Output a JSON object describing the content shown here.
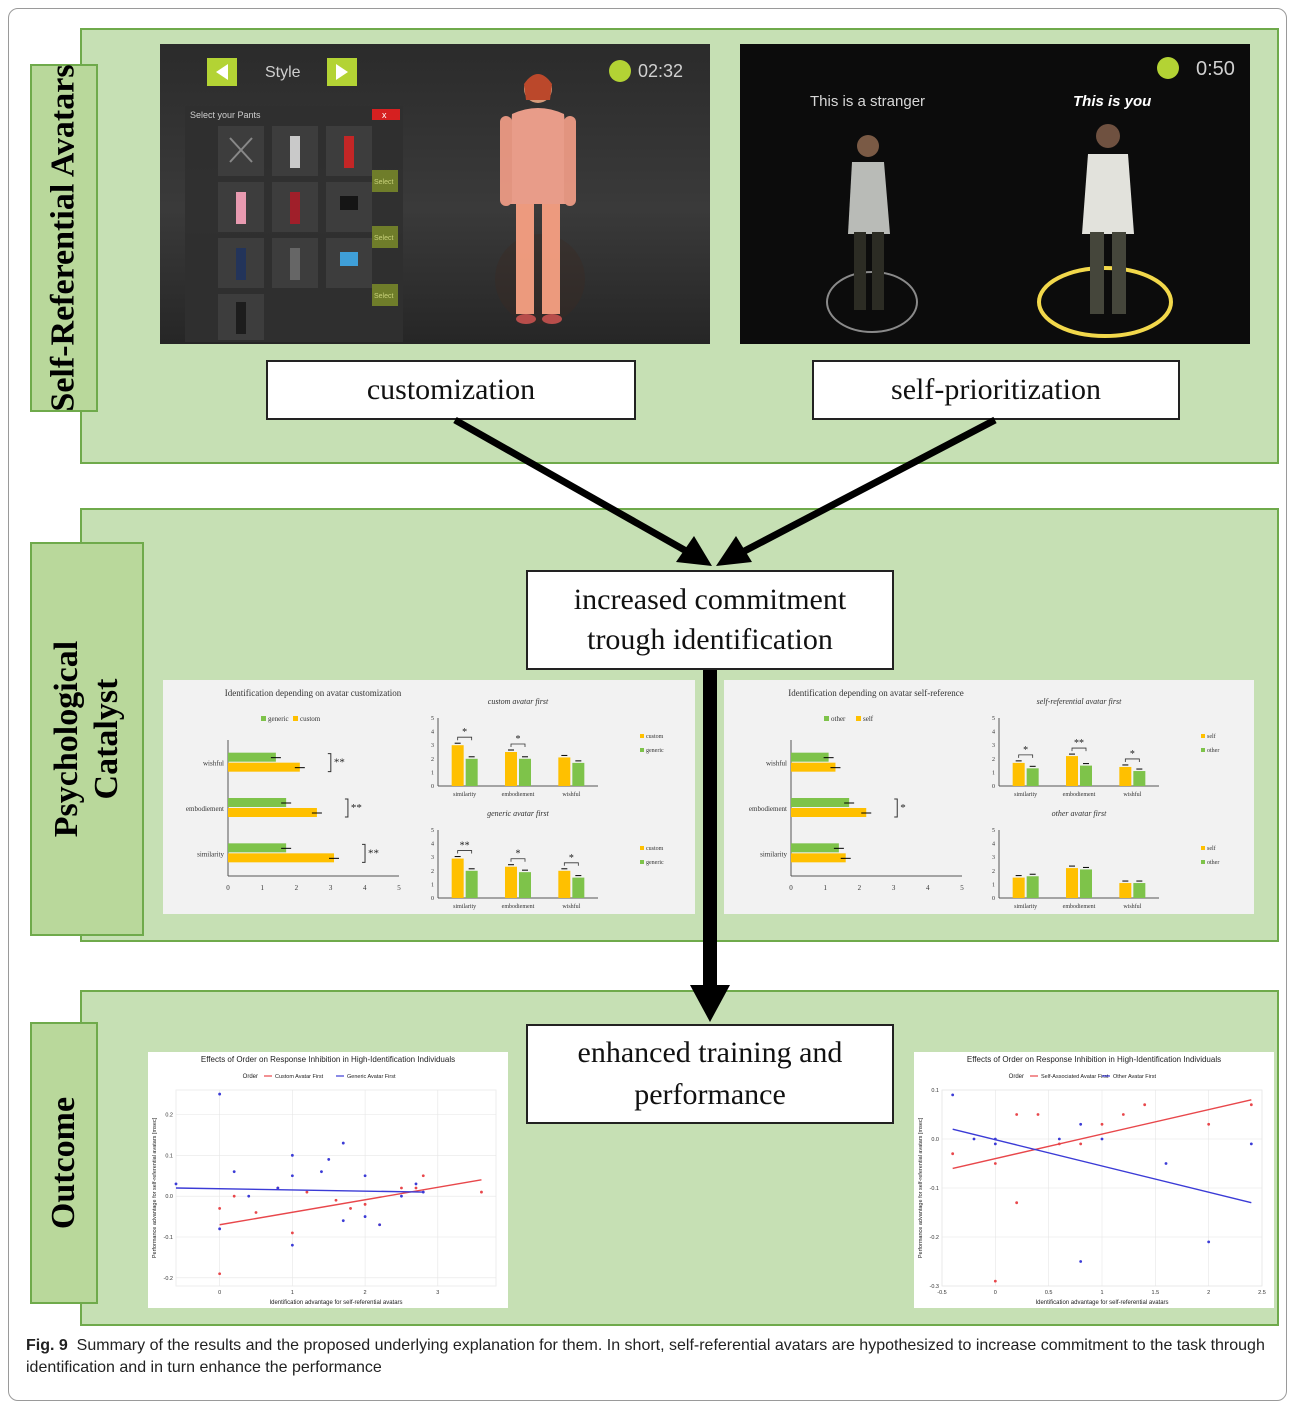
{
  "sections": {
    "top_label": "Self-Referential Avatars",
    "middle_label_line1": "Psychological",
    "middle_label_line2": "Catalyst",
    "bottom_label": "Outcome"
  },
  "boxes": {
    "customization": "customization",
    "self_prioritization": "self-prioritization",
    "commitment_line1": "increased commitment",
    "commitment_line2": "trough identification",
    "outcome_line1": "enhanced training and",
    "outcome_line2": "performance"
  },
  "screenshot_left": {
    "style_label": "Style",
    "timer": "02:32",
    "menu_title": "Select your Pants",
    "menu_close": "x",
    "select_label": "Select"
  },
  "screenshot_right": {
    "timer": "0:50",
    "stranger_label": "This is a stranger",
    "you_label": "This is you"
  },
  "chart_data": [
    {
      "type": "bar",
      "orientation": "horizontal",
      "title": "Identification depending on avatar customization",
      "legend": [
        "generic",
        "custom"
      ],
      "categories": [
        "wishful",
        "embodiement",
        "similarity"
      ],
      "series": [
        {
          "name": "generic",
          "values": [
            1.4,
            1.7,
            1.7
          ]
        },
        {
          "name": "custom",
          "values": [
            2.1,
            2.6,
            3.1
          ]
        }
      ],
      "xlim": [
        0,
        5
      ],
      "xticks": [
        "0",
        "1",
        "2",
        "3",
        "4",
        "5"
      ],
      "significance": [
        "**",
        "**",
        "**"
      ],
      "colors": {
        "generic": "#7ec34a",
        "custom": "#ffc000"
      }
    },
    {
      "type": "bar",
      "title": "custom avatar first",
      "categories": [
        "similarity",
        "embodiement",
        "wishful"
      ],
      "series": [
        {
          "name": "custom",
          "values": [
            3.0,
            2.5,
            2.1
          ]
        },
        {
          "name": "generic",
          "values": [
            2.0,
            2.0,
            1.7
          ]
        }
      ],
      "ylim": [
        0,
        5
      ],
      "significance": [
        "*",
        "*",
        ""
      ]
    },
    {
      "type": "bar",
      "title": "generic avatar first",
      "categories": [
        "similarity",
        "embodiement",
        "wishful"
      ],
      "series": [
        {
          "name": "custom",
          "values": [
            2.9,
            2.3,
            2.0
          ]
        },
        {
          "name": "generic",
          "values": [
            2.0,
            1.9,
            1.5
          ]
        }
      ],
      "ylim": [
        0,
        5
      ],
      "significance": [
        "**",
        "*",
        "*"
      ]
    },
    {
      "type": "bar",
      "orientation": "horizontal",
      "title": "Identification depending on avatar self-reference",
      "legend": [
        "other",
        "self"
      ],
      "categories": [
        "wishful",
        "embodiement",
        "similarity"
      ],
      "series": [
        {
          "name": "other",
          "values": [
            1.1,
            1.7,
            1.4
          ]
        },
        {
          "name": "self",
          "values": [
            1.3,
            2.2,
            1.6
          ]
        }
      ],
      "xlim": [
        0,
        5
      ],
      "xticks": [
        "0",
        "1",
        "2",
        "3",
        "4",
        "5"
      ],
      "significance": [
        "",
        "*",
        ""
      ]
    },
    {
      "type": "bar",
      "title": "self-referential avatar first",
      "categories": [
        "similarity",
        "embodiement",
        "wishful"
      ],
      "series": [
        {
          "name": "self",
          "values": [
            1.7,
            2.2,
            1.4
          ]
        },
        {
          "name": "other",
          "values": [
            1.3,
            1.5,
            1.1
          ]
        }
      ],
      "ylim": [
        0,
        5
      ],
      "significance": [
        "*",
        "**",
        "*"
      ]
    },
    {
      "type": "bar",
      "title": "other avatar first",
      "categories": [
        "similarity",
        "embodiement",
        "wishful"
      ],
      "series": [
        {
          "name": "self",
          "values": [
            1.5,
            2.2,
            1.1
          ]
        },
        {
          "name": "other",
          "values": [
            1.6,
            2.1,
            1.1
          ]
        }
      ],
      "ylim": [
        0,
        5
      ],
      "significance": [
        "",
        "",
        ""
      ]
    },
    {
      "type": "scatter",
      "title": "Effects of Order on Response Inhibition in High-Identification Individuals",
      "legend_title": "Order",
      "xlabel": "Identification advantage for self-referential avatars",
      "ylabel": "Performance advantage for self-referential avatars [msec]",
      "xlim": [
        -0.6,
        3.8
      ],
      "ylim": [
        -0.22,
        0.26
      ],
      "xticks": [
        0,
        1,
        2,
        3
      ],
      "yticks": [
        -0.2,
        -0.1,
        0.0,
        0.1,
        0.2
      ],
      "series": [
        {
          "name": "Custom Avatar First",
          "color": "#e8474b",
          "points": [
            [
              0.0,
              -0.19
            ],
            [
              0.0,
              -0.03
            ],
            [
              0.2,
              0.0
            ],
            [
              0.5,
              -0.04
            ],
            [
              0.8,
              0.02
            ],
            [
              1.0,
              -0.09
            ],
            [
              1.2,
              0.01
            ],
            [
              1.6,
              -0.01
            ],
            [
              1.8,
              -0.03
            ],
            [
              2.0,
              -0.02
            ],
            [
              2.2,
              -0.07
            ],
            [
              2.5,
              0.02
            ],
            [
              2.7,
              0.02
            ],
            [
              2.8,
              0.05
            ],
            [
              3.6,
              0.01
            ]
          ],
          "fit": [
            [
              0.0,
              -0.07
            ],
            [
              3.6,
              0.04
            ]
          ]
        },
        {
          "name": "Generic Avatar First",
          "color": "#3b3bd6",
          "points": [
            [
              -0.6,
              0.03
            ],
            [
              0.0,
              0.25
            ],
            [
              0.0,
              -0.08
            ],
            [
              0.2,
              0.06
            ],
            [
              0.4,
              0.0
            ],
            [
              0.8,
              0.02
            ],
            [
              1.0,
              0.1
            ],
            [
              1.0,
              0.05
            ],
            [
              1.0,
              -0.12
            ],
            [
              1.4,
              0.06
            ],
            [
              1.5,
              0.09
            ],
            [
              1.7,
              0.13
            ],
            [
              1.7,
              -0.06
            ],
            [
              2.0,
              0.05
            ],
            [
              2.0,
              -0.05
            ],
            [
              2.2,
              -0.07
            ],
            [
              2.5,
              0.0
            ],
            [
              2.7,
              0.03
            ],
            [
              2.8,
              0.01
            ]
          ],
          "fit": [
            [
              -0.6,
              0.02
            ],
            [
              2.8,
              0.01
            ]
          ]
        }
      ]
    },
    {
      "type": "scatter",
      "title": "Effects of Order on Response Inhibition in High-Identification Individuals",
      "legend_title": "Order",
      "xlabel": "Identification advantage for self-referential avatars",
      "ylabel": "Performance advantage for self-referential avatars [msec]",
      "xlim": [
        -0.5,
        2.5
      ],
      "ylim": [
        -0.3,
        0.1
      ],
      "xticks": [
        -0.5,
        0.0,
        0.5,
        1.0,
        1.5,
        2.0,
        2.5
      ],
      "yticks": [
        -0.3,
        -0.2,
        -0.1,
        0.0,
        0.1
      ],
      "series": [
        {
          "name": "Self-Associated Avatar First",
          "color": "#e8474b",
          "points": [
            [
              -0.4,
              -0.03
            ],
            [
              0.0,
              -0.29
            ],
            [
              0.0,
              -0.05
            ],
            [
              0.2,
              0.05
            ],
            [
              0.2,
              -0.13
            ],
            [
              0.4,
              0.05
            ],
            [
              0.6,
              -0.01
            ],
            [
              0.8,
              -0.01
            ],
            [
              1.0,
              0.03
            ],
            [
              1.2,
              0.05
            ],
            [
              1.4,
              0.07
            ],
            [
              2.0,
              0.03
            ],
            [
              2.4,
              0.07
            ]
          ],
          "fit": [
            [
              -0.4,
              -0.06
            ],
            [
              2.4,
              0.08
            ]
          ]
        },
        {
          "name": "Other Avatar First",
          "color": "#3b3bd6",
          "points": [
            [
              -0.4,
              0.09
            ],
            [
              -0.2,
              0.0
            ],
            [
              0.0,
              -0.01
            ],
            [
              0.0,
              0.0
            ],
            [
              0.6,
              0.0
            ],
            [
              0.8,
              0.03
            ],
            [
              0.8,
              -0.25
            ],
            [
              1.0,
              0.0
            ],
            [
              1.6,
              -0.05
            ],
            [
              2.0,
              -0.21
            ],
            [
              2.4,
              -0.01
            ]
          ],
          "fit": [
            [
              -0.4,
              0.02
            ],
            [
              2.4,
              -0.13
            ]
          ]
        }
      ]
    }
  ],
  "caption": {
    "label": "Fig. 9",
    "text": "Summary of the results and the proposed underlying explanation for them. In short, self-referential avatars are hypothesized to increase commitment to the task through identification and in turn enhance the performance"
  }
}
